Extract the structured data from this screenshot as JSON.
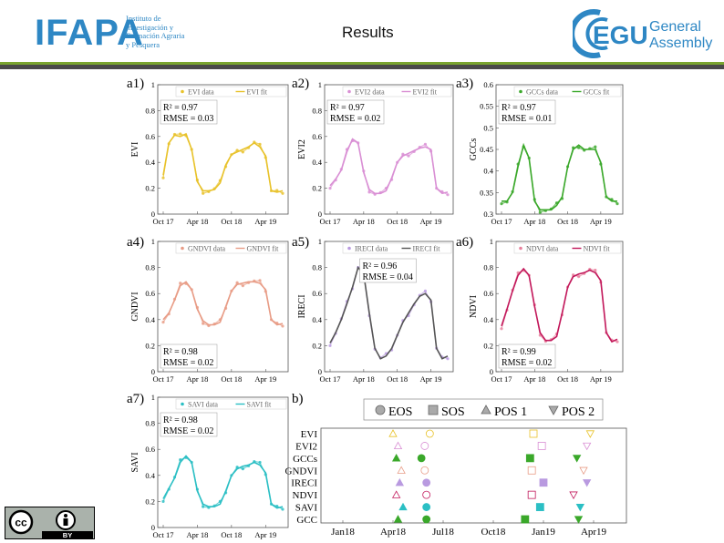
{
  "header": {
    "org_logo": "IFAPA",
    "org_subtitle": [
      "Instituto de",
      "Investigación y",
      "Formación Agraria",
      "y Pesquera"
    ],
    "title": "Results",
    "event_logo_main": "EGU",
    "event_logo_line1": "General",
    "event_logo_line2": "Assembly"
  },
  "license_badge": {
    "cc": "cc",
    "by": "BY"
  },
  "colors": {
    "EVI": "#e8c22a",
    "EVI2": "#d98fd4",
    "GCCs": "#3aa82a",
    "GNDVI": "#e89c86",
    "IRECI_data": "#b99ae0",
    "IRECI_fit": "#555555",
    "NDVI_data": "#e8809c",
    "NDVI_fit": "#c2185b",
    "SAVI": "#2bbfc4",
    "header_blue": "#2e87c4",
    "header_bar": "#4a4a4a",
    "header_green": "#7aa52f"
  },
  "chart_data": [
    {
      "id": "a1",
      "panel_label": "a1)",
      "type": "line",
      "ylabel": "EVI",
      "ylim": [
        0,
        1
      ],
      "yticks": [
        "0",
        "0.2",
        "0.4",
        "0.6",
        "0.8",
        "1"
      ],
      "xticks": [
        "Oct 17",
        "Apr 18",
        "Oct 18",
        "Apr 19"
      ],
      "legend": [
        "EVI data",
        "EVI fit"
      ],
      "legend_placement": "top",
      "annotation": {
        "r2": "R² = 0.97",
        "rmse": "RMSE = 0.03",
        "placement": "top-left"
      },
      "series": [
        {
          "name": "EVI fit",
          "x_month": [
            0,
            1,
            2,
            3,
            4,
            5,
            6,
            7,
            8,
            9,
            10,
            11,
            12,
            13,
            14,
            15,
            16,
            17,
            18,
            19,
            20,
            21
          ],
          "values": [
            0.3,
            0.55,
            0.61,
            0.6,
            0.62,
            0.5,
            0.25,
            0.18,
            0.18,
            0.19,
            0.24,
            0.38,
            0.46,
            0.48,
            0.5,
            0.52,
            0.55,
            0.52,
            0.45,
            0.18,
            0.17,
            0.18
          ]
        }
      ]
    },
    {
      "id": "a2",
      "panel_label": "a2)",
      "type": "line",
      "ylabel": "EVI2",
      "ylim": [
        0,
        1
      ],
      "yticks": [
        "0",
        "0.2",
        "0.4",
        "0.6",
        "0.8",
        "1"
      ],
      "xticks": [
        "Oct 17",
        "Apr 18",
        "Oct 18",
        "Apr 19"
      ],
      "legend": [
        "EVI2 data",
        "EVI2 fit"
      ],
      "legend_placement": "top",
      "annotation": {
        "r2": "R² = 0.97",
        "rmse": "RMSE = 0.02",
        "placement": "top-left"
      },
      "series": [
        {
          "name": "EVI2 fit",
          "x_month": [
            0,
            1,
            2,
            3,
            4,
            5,
            6,
            7,
            8,
            9,
            10,
            11,
            12,
            13,
            14,
            15,
            16,
            17,
            18,
            19,
            20,
            21
          ],
          "values": [
            0.22,
            0.27,
            0.34,
            0.48,
            0.58,
            0.55,
            0.32,
            0.19,
            0.16,
            0.16,
            0.18,
            0.28,
            0.4,
            0.45,
            0.47,
            0.49,
            0.51,
            0.52,
            0.5,
            0.2,
            0.16,
            0.17
          ]
        }
      ]
    },
    {
      "id": "a3",
      "panel_label": "a3)",
      "type": "line",
      "ylabel": "GCCs",
      "ylim": [
        0.3,
        0.6
      ],
      "yticks": [
        "0.3",
        "0.35",
        "0.4",
        "0.45",
        "0.5",
        "0.55",
        "0.6"
      ],
      "xticks": [
        "Oct 17",
        "Apr 18",
        "Oct 18",
        "Apr 19"
      ],
      "legend": [
        "GCCs data",
        "GCCs fit"
      ],
      "legend_placement": "top",
      "annotation": {
        "r2": "R² = 0.97",
        "rmse": "RMSE = 0.01",
        "placement": "top-left"
      },
      "series": [
        {
          "name": "GCCs fit",
          "x_month": [
            0,
            1,
            2,
            3,
            4,
            5,
            6,
            7,
            8,
            9,
            10,
            11,
            12,
            13,
            14,
            15,
            16,
            17,
            18,
            19,
            20,
            21
          ],
          "values": [
            0.33,
            0.33,
            0.35,
            0.41,
            0.46,
            0.43,
            0.33,
            0.31,
            0.31,
            0.31,
            0.32,
            0.34,
            0.41,
            0.45,
            0.46,
            0.45,
            0.45,
            0.45,
            0.42,
            0.34,
            0.33,
            0.33
          ]
        }
      ]
    },
    {
      "id": "a4",
      "panel_label": "a4)",
      "type": "line",
      "ylabel": "GNDVI",
      "ylim": [
        0,
        1
      ],
      "yticks": [
        "0",
        "0.2",
        "0.4",
        "0.6",
        "0.8",
        "1"
      ],
      "xticks": [
        "Oct 17",
        "Apr 18",
        "Oct 18",
        "Apr 19"
      ],
      "legend": [
        "GNDVI data",
        "GNDVI fit"
      ],
      "legend_placement": "top",
      "annotation": {
        "r2": "R² = 0.98",
        "rmse": "RMSE = 0.02",
        "placement": "bottom-left"
      },
      "series": [
        {
          "name": "GNDVI fit",
          "x_month": [
            0,
            1,
            2,
            3,
            4,
            5,
            6,
            7,
            8,
            9,
            10,
            11,
            12,
            13,
            14,
            15,
            16,
            17,
            18,
            19,
            20,
            21
          ],
          "values": [
            0.4,
            0.45,
            0.55,
            0.66,
            0.69,
            0.63,
            0.48,
            0.39,
            0.36,
            0.36,
            0.38,
            0.5,
            0.62,
            0.67,
            0.68,
            0.69,
            0.69,
            0.68,
            0.63,
            0.4,
            0.36,
            0.37
          ]
        }
      ]
    },
    {
      "id": "a5",
      "panel_label": "a5)",
      "type": "line",
      "ylabel": "IRECI",
      "ylim": [
        0,
        1
      ],
      "yticks": [
        "0",
        "0.2",
        "0.4",
        "0.6",
        "0.8",
        "1"
      ],
      "xticks": [
        "Oct 17",
        "Apr 18",
        "Oct 18",
        "Apr 19"
      ],
      "legend": [
        "IRECI data",
        "IRECI fit"
      ],
      "legend_placement": "top",
      "annotation": {
        "r2": "R² = 0.96",
        "rmse": "RMSE = 0.04",
        "placement": "top-center"
      },
      "series": [
        {
          "name": "IRECI fit",
          "x_month": [
            0,
            1,
            2,
            3,
            4,
            5,
            6,
            7,
            8,
            9,
            10,
            11,
            12,
            13,
            14,
            15,
            16,
            17,
            18,
            19,
            20,
            21
          ],
          "values": [
            0.22,
            0.3,
            0.4,
            0.52,
            0.65,
            0.8,
            0.75,
            0.45,
            0.18,
            0.1,
            0.12,
            0.18,
            0.28,
            0.38,
            0.45,
            0.52,
            0.58,
            0.6,
            0.55,
            0.18,
            0.1,
            0.12
          ]
        }
      ]
    },
    {
      "id": "a6",
      "panel_label": "a6)",
      "type": "line",
      "ylabel": "NDVI",
      "ylim": [
        0,
        1
      ],
      "yticks": [
        "0",
        "0.2",
        "0.4",
        "0.6",
        "0.8",
        "1"
      ],
      "xticks": [
        "Oct 17",
        "Apr 18",
        "Oct 18",
        "Apr 19"
      ],
      "legend": [
        "NDVI data",
        "NDVI fit"
      ],
      "legend_placement": "top",
      "annotation": {
        "r2": "R² = 0.99",
        "rmse": "RMSE = 0.02",
        "placement": "bottom-left"
      },
      "series": [
        {
          "name": "NDVI fit",
          "x_month": [
            0,
            1,
            2,
            3,
            4,
            5,
            6,
            7,
            8,
            9,
            10,
            11,
            12,
            13,
            14,
            15,
            16,
            17,
            18,
            19,
            20,
            21
          ],
          "values": [
            0.35,
            0.48,
            0.62,
            0.74,
            0.79,
            0.74,
            0.5,
            0.3,
            0.24,
            0.24,
            0.27,
            0.45,
            0.65,
            0.73,
            0.75,
            0.76,
            0.78,
            0.76,
            0.7,
            0.3,
            0.23,
            0.25
          ]
        }
      ]
    },
    {
      "id": "a7",
      "panel_label": "a7)",
      "type": "line",
      "ylabel": "SAVI",
      "ylim": [
        0,
        1
      ],
      "yticks": [
        "0",
        "0.2",
        "0.4",
        "0.6",
        "0.8",
        "1"
      ],
      "xticks": [
        "Oct 17",
        "Apr 18",
        "Oct 18",
        "Apr 19"
      ],
      "legend": [
        "SAVI data",
        "SAVI fit"
      ],
      "legend_placement": "top",
      "annotation": {
        "r2": "R² = 0.98",
        "rmse": "RMSE = 0.02",
        "placement": "top-left"
      },
      "series": [
        {
          "name": "SAVI fit",
          "x_month": [
            0,
            1,
            2,
            3,
            4,
            5,
            6,
            7,
            8,
            9,
            10,
            11,
            12,
            13,
            14,
            15,
            16,
            17,
            18,
            19,
            20,
            21
          ],
          "values": [
            0.22,
            0.3,
            0.38,
            0.5,
            0.55,
            0.5,
            0.28,
            0.18,
            0.16,
            0.16,
            0.18,
            0.28,
            0.4,
            0.45,
            0.47,
            0.48,
            0.5,
            0.48,
            0.42,
            0.18,
            0.15,
            0.16
          ]
        }
      ]
    },
    {
      "id": "b",
      "panel_label": "b)",
      "type": "scatter",
      "legend": [
        "EOS",
        "SOS",
        "POS 1",
        "POS 2"
      ],
      "legend_placement": "top",
      "categories": [
        "EVI",
        "EVI2",
        "GCCs",
        "GNDVI",
        "IRECI",
        "NDVI",
        "SAVI",
        "GCC"
      ],
      "xticks": [
        "Jan18",
        "Apr18",
        "Jul18",
        "Oct18",
        "Jan19",
        "Apr19"
      ],
      "x_unit": "months since Jan 2018",
      "series": [
        {
          "name": "POS 1",
          "values": [
            3.0,
            3.3,
            3.2,
            3.5,
            3.4,
            3.2,
            3.6,
            3.3
          ]
        },
        {
          "name": "EOS",
          "values": [
            5.2,
            4.9,
            4.7,
            4.9,
            5.0,
            5.0,
            5.0,
            5.0
          ]
        },
        {
          "name": "SOS",
          "values": [
            11.4,
            11.9,
            11.2,
            11.3,
            12.0,
            11.3,
            11.8,
            10.9
          ]
        },
        {
          "name": "POS 2",
          "values": [
            14.8,
            14.6,
            14.0,
            14.4,
            14.6,
            13.8,
            14.2,
            14.1
          ]
        }
      ],
      "marker_colors": [
        "#e8c22a",
        "#d98fd4",
        "#3aa82a",
        "#e89c86",
        "#b99ae0",
        "#c2185b",
        "#2bbfc4",
        "#3aa82a"
      ],
      "filled": [
        false,
        false,
        true,
        false,
        true,
        false,
        true,
        true
      ]
    }
  ]
}
